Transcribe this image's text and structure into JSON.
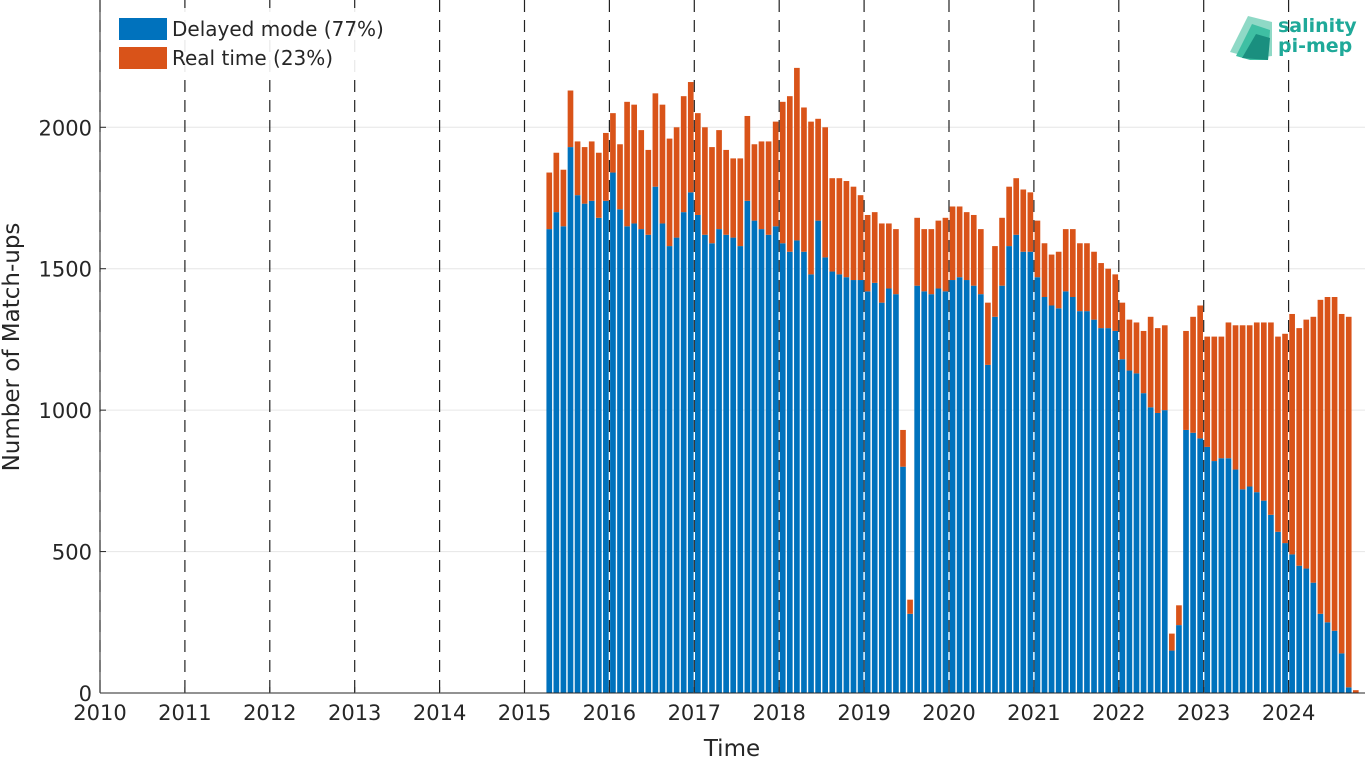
{
  "colors": {
    "delayed": "#0072bd",
    "realtime": "#d95319",
    "grid": "#e6e6e6",
    "axis": "#262626",
    "logo": "#1fa999"
  },
  "logo": {
    "line1": "salinity",
    "line2": "pi-mep"
  },
  "chart_data": {
    "type": "bar",
    "stacked": true,
    "xlabel": "Time",
    "ylabel": "Number of Match-ups",
    "xlim": [
      2010,
      2024.9
    ],
    "ylim": [
      0,
      2450
    ],
    "x_ticks": [
      "2010",
      "2011",
      "2012",
      "2013",
      "2014",
      "2015",
      "2016",
      "2017",
      "2018",
      "2019",
      "2020",
      "2021",
      "2022",
      "2023",
      "2024"
    ],
    "y_ticks": [
      "0",
      "500",
      "1000",
      "1500",
      "2000"
    ],
    "vertical_dashed_lines_at_years": [
      2010,
      2011,
      2012,
      2013,
      2014,
      2015,
      2016,
      2017,
      2018,
      2019,
      2020,
      2021,
      2022,
      2023,
      2024
    ],
    "grid": "horizontal",
    "legend_position": "top-left",
    "legend": [
      "Delayed mode (77%)",
      "Real time (23%)"
    ],
    "first_month": "2015-04",
    "series": [
      {
        "name": "Delayed mode (77%)",
        "values": [
          1640,
          1700,
          1650,
          1930,
          1760,
          1730,
          1740,
          1680,
          1740,
          1840,
          1710,
          1650,
          1660,
          1640,
          1620,
          1790,
          1660,
          1580,
          1610,
          1700,
          1770,
          1690,
          1620,
          1590,
          1640,
          1620,
          1610,
          1580,
          1740,
          1670,
          1640,
          1620,
          1650,
          1590,
          1560,
          1600,
          1560,
          1480,
          1670,
          1540,
          1490,
          1480,
          1470,
          1460,
          1460,
          1420,
          1450,
          1380,
          1430,
          1410,
          800,
          280,
          1440,
          1420,
          1410,
          1430,
          1420,
          1460,
          1470,
          1460,
          1440,
          1410,
          1160,
          1330,
          1440,
          1580,
          1620,
          1560,
          1560,
          1470,
          1400,
          1370,
          1360,
          1420,
          1400,
          1350,
          1350,
          1320,
          1290,
          1290,
          1280,
          1180,
          1140,
          1130,
          1060,
          1010,
          990,
          1000,
          150,
          240,
          930,
          920,
          900,
          870,
          820,
          830,
          830,
          790,
          720,
          730,
          710,
          680,
          630,
          570,
          530,
          490,
          450,
          440,
          390,
          280,
          250,
          220,
          140,
          20,
          0
        ]
      },
      {
        "name": "Real time (23%)",
        "values": [
          200,
          210,
          200,
          200,
          190,
          200,
          210,
          230,
          240,
          210,
          230,
          440,
          420,
          350,
          300,
          330,
          420,
          380,
          390,
          410,
          390,
          360,
          380,
          340,
          350,
          300,
          280,
          310,
          300,
          270,
          310,
          330,
          370,
          500,
          550,
          610,
          510,
          540,
          360,
          460,
          330,
          340,
          340,
          330,
          300,
          270,
          250,
          280,
          230,
          230,
          130,
          50,
          240,
          220,
          230,
          240,
          260,
          260,
          250,
          240,
          250,
          230,
          220,
          250,
          240,
          210,
          200,
          220,
          210,
          200,
          190,
          180,
          200,
          220,
          240,
          240,
          240,
          240,
          230,
          210,
          200,
          200,
          180,
          180,
          220,
          320,
          300,
          300,
          60,
          70,
          350,
          410,
          470,
          390,
          440,
          430,
          480,
          510,
          580,
          570,
          600,
          630,
          680,
          690,
          740,
          850,
          840,
          880,
          940,
          1110,
          1150,
          1180,
          1200,
          1310,
          10
        ]
      }
    ]
  }
}
